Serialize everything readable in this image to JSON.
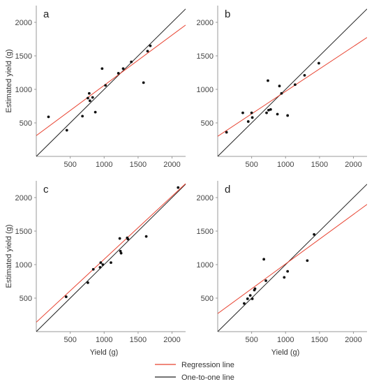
{
  "figure": {
    "legend": {
      "placement": "bottom-center",
      "items": [
        {
          "label": "Regression line",
          "color": "#e8412f"
        },
        {
          "label": "One-to-one line",
          "color": "#222222"
        }
      ]
    }
  },
  "chart_data": [
    {
      "type": "scatter",
      "panel_label": "a",
      "xlabel": "",
      "ylabel": "Estimated yield (g)",
      "xlim": [
        0,
        2200
      ],
      "ylim": [
        0,
        2250
      ],
      "xticks": [
        500,
        1000,
        1500,
        2000
      ],
      "yticks": [
        500,
        1000,
        1500,
        2000
      ],
      "grid": false,
      "points": [
        [
          180,
          590
        ],
        [
          450,
          390
        ],
        [
          680,
          600
        ],
        [
          760,
          870
        ],
        [
          780,
          940
        ],
        [
          790,
          830
        ],
        [
          830,
          880
        ],
        [
          870,
          660
        ],
        [
          970,
          1310
        ],
        [
          1020,
          1060
        ],
        [
          1210,
          1240
        ],
        [
          1280,
          1310
        ],
        [
          1400,
          1410
        ],
        [
          1580,
          1100
        ],
        [
          1640,
          1570
        ],
        [
          1680,
          1650
        ]
      ],
      "regression_line": {
        "intercept": 310,
        "slope": 0.75
      },
      "one_to_one": true
    },
    {
      "type": "scatter",
      "panel_label": "b",
      "xlabel": "",
      "ylabel": "",
      "xlim": [
        0,
        2200
      ],
      "ylim": [
        0,
        2250
      ],
      "xticks": [
        500,
        1000,
        1500,
        2000
      ],
      "yticks": [
        500,
        1000,
        1500,
        2000
      ],
      "grid": false,
      "points": [
        [
          130,
          360
        ],
        [
          370,
          650
        ],
        [
          450,
          520
        ],
        [
          500,
          650
        ],
        [
          510,
          580
        ],
        [
          720,
          650
        ],
        [
          740,
          1130
        ],
        [
          750,
          690
        ],
        [
          780,
          700
        ],
        [
          880,
          630
        ],
        [
          910,
          1050
        ],
        [
          940,
          940
        ],
        [
          1030,
          610
        ],
        [
          1140,
          1070
        ],
        [
          1280,
          1210
        ],
        [
          1490,
          1390
        ]
      ],
      "regression_line": {
        "intercept": 300,
        "slope": 0.67
      },
      "one_to_one": true
    },
    {
      "type": "scatter",
      "panel_label": "c",
      "xlabel": "Yield (g)",
      "ylabel": "Estimated yield (g)",
      "xlim": [
        0,
        2200
      ],
      "ylim": [
        0,
        2250
      ],
      "xticks": [
        500,
        1000,
        1500,
        2000
      ],
      "yticks": [
        500,
        1000,
        1500,
        2000
      ],
      "grid": false,
      "points": [
        [
          440,
          520
        ],
        [
          760,
          730
        ],
        [
          840,
          930
        ],
        [
          940,
          960
        ],
        [
          950,
          1030
        ],
        [
          980,
          1000
        ],
        [
          1100,
          1030
        ],
        [
          1230,
          1390
        ],
        [
          1240,
          1200
        ],
        [
          1250,
          1170
        ],
        [
          1340,
          1400
        ],
        [
          1350,
          1380
        ],
        [
          1620,
          1420
        ],
        [
          2090,
          2150
        ]
      ],
      "regression_line": {
        "intercept": 140,
        "slope": 0.94
      },
      "one_to_one": true
    },
    {
      "type": "scatter",
      "panel_label": "d",
      "xlabel": "Yield (g)",
      "ylabel": "",
      "xlim": [
        0,
        2200
      ],
      "ylim": [
        0,
        2250
      ],
      "xticks": [
        500,
        1000,
        1500,
        2000
      ],
      "yticks": [
        500,
        1000,
        1500,
        2000
      ],
      "grid": false,
      "points": [
        [
          390,
          420
        ],
        [
          440,
          490
        ],
        [
          480,
          540
        ],
        [
          510,
          490
        ],
        [
          540,
          620
        ],
        [
          550,
          640
        ],
        [
          680,
          1080
        ],
        [
          710,
          760
        ],
        [
          980,
          810
        ],
        [
          1030,
          900
        ],
        [
          1320,
          1060
        ],
        [
          1420,
          1450
        ]
      ],
      "regression_line": {
        "intercept": 270,
        "slope": 0.74
      },
      "one_to_one": true
    }
  ]
}
